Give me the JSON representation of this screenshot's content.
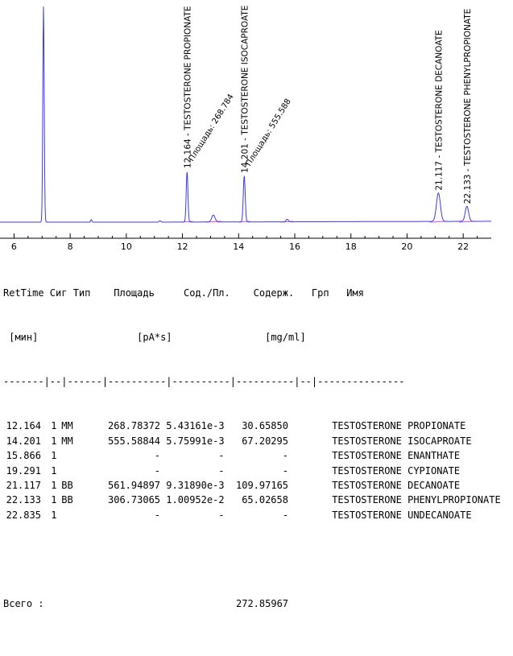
{
  "chart_data": {
    "type": "line",
    "xlim": [
      5.5,
      23
    ],
    "ylim": [
      0,
      1
    ],
    "x_ticks": [
      "6",
      "8",
      "10",
      "12",
      "14",
      "16",
      "18",
      "20",
      "22"
    ],
    "colors": {
      "trace": "#3a3ae8",
      "baseline": "#e24ae2",
      "axis": "#000000"
    },
    "peaks": [
      {
        "rt": 7.05,
        "height": 1.0,
        "width": 0.025
      },
      {
        "rt": 8.75,
        "height": 0.012,
        "width": 0.02
      },
      {
        "rt": 11.2,
        "height": 0.006,
        "width": 0.03
      },
      {
        "rt": 12.164,
        "height": 0.235,
        "width": 0.03
      },
      {
        "rt": 13.1,
        "height": 0.032,
        "width": 0.06
      },
      {
        "rt": 14.201,
        "height": 0.213,
        "width": 0.034
      },
      {
        "rt": 15.73,
        "height": 0.012,
        "width": 0.04
      },
      {
        "rt": 21.117,
        "height": 0.132,
        "width": 0.07
      },
      {
        "rt": 22.133,
        "height": 0.07,
        "width": 0.06
      }
    ],
    "annotations": [
      {
        "rt": 12.164,
        "name": "TESTOSTERONE PROPIONATE",
        "label": "12.164 -  TESTOSTERONE PROPIONATE",
        "area_label": "Площадь: 268.784"
      },
      {
        "rt": 14.201,
        "name": "TESTOSTERONE ISOCAPROATE",
        "label": "14.201 -  TESTOSTERONE ISOCAPROATE",
        "area_label": "Площадь: 555.588"
      },
      {
        "rt": 21.117,
        "name": "TESTOSTERONE DECANOATE",
        "label": "21.117 -  TESTOSTERONE DECANOATE",
        "area_label": ""
      },
      {
        "rt": 22.133,
        "name": "TESTOSTERONE PHENYLPROPIONATE",
        "label": "22.133 -  TESTOSTERONE PHENYLPROPIONATE",
        "area_label": ""
      }
    ]
  },
  "report": {
    "header1": "RetTime Сиг Тип    Площадь     Сод./Пл.    Содерж.   Грп   Имя",
    "header2": " [мин]                 [pA*s]                [mg/ml]",
    "separator": "-------|--|------|----------|----------|----------|--|---------------",
    "rows": [
      {
        "ret": "12.164",
        "sig": "1",
        "type": "MM",
        "area": "268.78372",
        "ratio": "5.43161e-3",
        "amount": "30.65850",
        "name": "TESTOSTERONE PROPIONATE"
      },
      {
        "ret": "14.201",
        "sig": "1",
        "type": "MM",
        "area": "555.58844",
        "ratio": "5.75991e-3",
        "amount": "67.20295",
        "name": "TESTOSTERONE ISOCAPROATE"
      },
      {
        "ret": "15.866",
        "sig": "1",
        "type": "",
        "area": "-",
        "ratio": "-",
        "amount": "-",
        "name": "TESTOSTERONE ENANTHATE"
      },
      {
        "ret": "19.291",
        "sig": "1",
        "type": "",
        "area": "-",
        "ratio": "-",
        "amount": "-",
        "name": "TESTOSTERONE CYPIONATE"
      },
      {
        "ret": "21.117",
        "sig": "1",
        "type": "BB",
        "area": "561.94897",
        "ratio": "9.31890e-3",
        "amount": "109.97165",
        "name": "TESTOSTERONE DECANOATE"
      },
      {
        "ret": "22.133",
        "sig": "1",
        "type": "BB",
        "area": "306.73065",
        "ratio": "1.00952e-2",
        "amount": "65.02658",
        "name": "TESTOSTERONE PHENYLPROPIONATE"
      },
      {
        "ret": "22.835",
        "sig": "1",
        "type": "",
        "area": "-",
        "ratio": "-",
        "amount": "-",
        "name": "TESTOSTERONE UNDECANOATE"
      }
    ],
    "total_label": "Всего :",
    "total_value": "272.85967"
  }
}
